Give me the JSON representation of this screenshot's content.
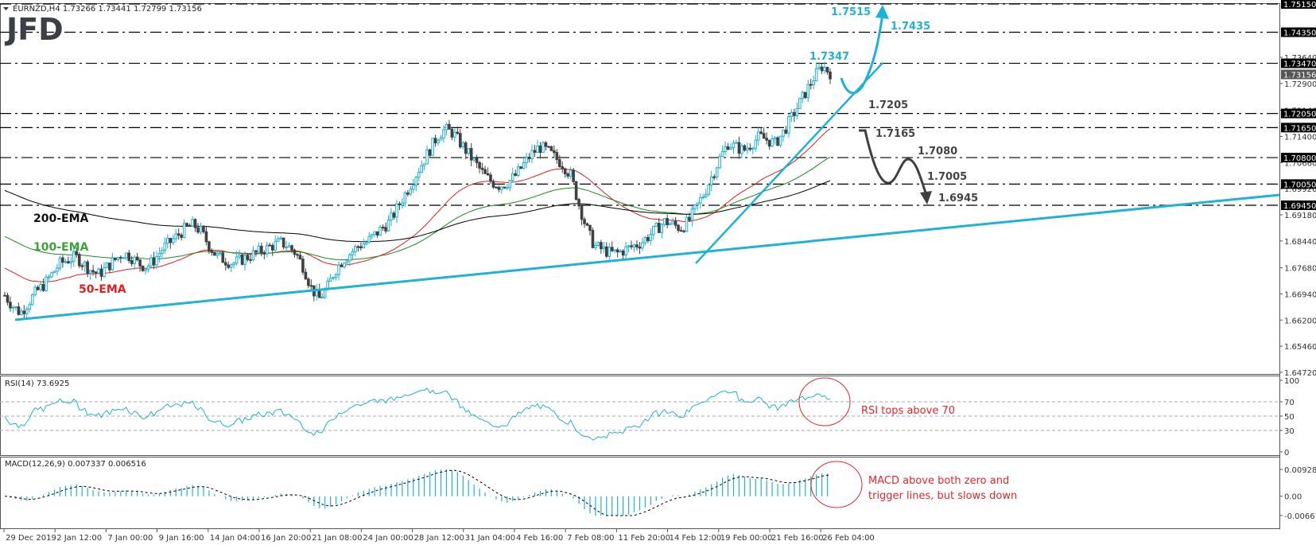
{
  "header": {
    "symbol": "EURNZD,H4",
    "ohlc": "1.73266 1.73441 1.72799 1.73156",
    "logo": "JFD"
  },
  "colors": {
    "bull_candle": "#1fb2d8",
    "bear_candle": "#404040",
    "ema50": "#e41e1e",
    "ema100": "#1a8a1a",
    "ema200": "#000000",
    "trendline": "#1fb2d8",
    "note": "#e8262b"
  },
  "chart_data": [
    {
      "type": "candlestick",
      "title": "EURNZD,H4 1.73266 1.73441 1.72799 1.73156",
      "xlabel": "",
      "ylabel": "Price",
      "ylim": [
        1.6435,
        1.755
      ],
      "price_ticks": [
        "1.64720",
        "1.65460",
        "1.66200",
        "1.66940",
        "1.67680",
        "1.68440",
        "1.69180",
        "1.69920",
        "1.70660",
        "1.71400",
        "1.72140",
        "1.72900",
        "1.73640"
      ],
      "current_price": "1.73156",
      "levels": [
        {
          "value": 1.7515,
          "label": "1.75150",
          "annotation": "1.7515",
          "color": "blue"
        },
        {
          "value": 1.7435,
          "label": "1.74350",
          "annotation": "1.7435",
          "color": "blue"
        },
        {
          "value": 1.7347,
          "label": "1.73470",
          "annotation": "1.7347",
          "color": "blue"
        },
        {
          "value": 1.7205,
          "label": "1.72050",
          "annotation": "1.7205",
          "color": "dark"
        },
        {
          "value": 1.7165,
          "label": "1.71650",
          "annotation": "1.7165",
          "color": "dark"
        },
        {
          "value": 1.708,
          "label": "1.70800",
          "annotation": "1.7080",
          "color": "dark"
        },
        {
          "value": 1.7005,
          "label": "1.70050",
          "annotation": "1.7005",
          "color": "dark"
        },
        {
          "value": 1.6945,
          "label": "1.69450",
          "annotation": "1.6945",
          "color": "dark"
        }
      ],
      "x_ticks": [
        "29 Dec 2019",
        "2 Jan 12:00",
        "7 Jan 00:00",
        "9 Jan 16:00",
        "14 Jan 04:00",
        "16 Jan 20:00",
        "21 Jan 08:00",
        "24 Jan 00:00",
        "28 Jan 12:00",
        "31 Jan 04:00",
        "4 Feb 16:00",
        "7 Feb 08:00",
        "11 Feb 20:00",
        "14 Feb 12:00",
        "19 Feb 00:00",
        "21 Feb 16:00",
        "26 Feb 04:00"
      ],
      "close_path": [
        1.669,
        1.666,
        1.664,
        1.667,
        1.67,
        1.672,
        1.675,
        1.678,
        1.679,
        1.68,
        1.678,
        1.676,
        1.675,
        1.677,
        1.679,
        1.681,
        1.68,
        1.678,
        1.677,
        1.679,
        1.682,
        1.684,
        1.686,
        1.688,
        1.689,
        1.687,
        1.683,
        1.68,
        1.679,
        1.678,
        1.679,
        1.68,
        1.681,
        1.682,
        1.683,
        1.684,
        1.683,
        1.681,
        1.677,
        1.671,
        1.668,
        1.671,
        1.676,
        1.679,
        1.681,
        1.683,
        1.684,
        1.686,
        1.688,
        1.69,
        1.694,
        1.698,
        1.702,
        1.706,
        1.71,
        1.714,
        1.716,
        1.715,
        1.712,
        1.709,
        1.706,
        1.703,
        1.701,
        1.7,
        1.701,
        1.703,
        1.706,
        1.709,
        1.711,
        1.71,
        1.708,
        1.706,
        1.703,
        1.695,
        1.688,
        1.683,
        1.682,
        1.681,
        1.681,
        1.682,
        1.683,
        1.684,
        1.686,
        1.688,
        1.69,
        1.689,
        1.688,
        1.69,
        1.694,
        1.698,
        1.703,
        1.708,
        1.712,
        1.711,
        1.71,
        1.712,
        1.714,
        1.713,
        1.712,
        1.715,
        1.719,
        1.723,
        1.727,
        1.731,
        1.734,
        1.732
      ],
      "series": [
        {
          "name": "50-EMA",
          "color": "#e41e1e"
        },
        {
          "name": "100-EMA",
          "color": "#1a8a1a"
        },
        {
          "name": "200-EMA",
          "color": "#000000"
        }
      ],
      "annotations": [
        "200-EMA",
        "100-EMA",
        "50-EMA",
        "1.7515",
        "1.7435",
        "1.7347",
        "1.7205",
        "1.7165",
        "1.7080",
        "1.7005",
        "1.6945"
      ]
    },
    {
      "type": "line",
      "title": "RSI(14) 73.6925",
      "ylim": [
        0,
        100
      ],
      "y_ticks": [
        "100",
        "70",
        "50",
        "30",
        "0"
      ],
      "levels": [
        70,
        50,
        30
      ],
      "last_value": 73.6925,
      "annotation": "RSI tops above 70"
    },
    {
      "type": "bar",
      "title": "MACD(12,26,9) 0.007337 0.006516",
      "ylim": [
        -0.006676,
        0.009289
      ],
      "y_ticks": [
        "0.009289",
        "0.00",
        "-0.006676"
      ],
      "macd": 0.007337,
      "signal": 0.006516,
      "annotation": "MACD above both zero and trigger lines, but slows down"
    }
  ],
  "labels": {
    "ema200": "200-EMA",
    "ema100": "100-EMA",
    "ema50": "50-EMA",
    "rsi_title": "RSI(14) 73.6925",
    "macd_title": "MACD(12,26,9) 0.007337 0.006516",
    "rsi_note": "RSI tops above 70",
    "macd_note_1": "MACD above both zero and",
    "macd_note_2": "trigger lines, but slows down"
  }
}
